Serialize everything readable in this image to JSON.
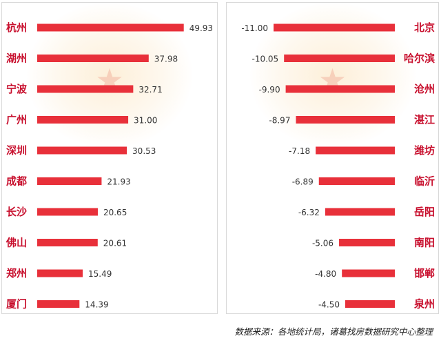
{
  "chart_data": [
    {
      "type": "bar",
      "orientation": "horizontal",
      "categories": [
        "杭州",
        "湖州",
        "宁波",
        "广州",
        "深圳",
        "成都",
        "长沙",
        "佛山",
        "郑州",
        "厦门"
      ],
      "values": [
        49.93,
        37.98,
        32.71,
        31.0,
        30.53,
        21.93,
        20.65,
        20.61,
        15.49,
        14.39
      ],
      "labels": [
        "49.93",
        "37.98",
        "32.71",
        "31.00",
        "30.53",
        "21.93",
        "20.65",
        "20.61",
        "15.49",
        "14.39"
      ],
      "xlim": [
        0,
        50
      ],
      "category_side": "left",
      "grid": false
    },
    {
      "type": "bar",
      "orientation": "horizontal",
      "categories": [
        "北京",
        "哈尔滨",
        "沧州",
        "湛江",
        "潍坊",
        "临沂",
        "岳阳",
        "南阳",
        "邯郸",
        "泉州"
      ],
      "values": [
        -11.0,
        -10.05,
        -9.9,
        -8.97,
        -7.18,
        -6.89,
        -6.32,
        -5.06,
        -4.8,
        -4.5
      ],
      "labels": [
        "-11.00",
        "-10.05",
        "-9.90",
        "-8.97",
        "-7.18",
        "-6.89",
        "-6.32",
        "-5.06",
        "-4.80",
        "-4.50"
      ],
      "xlim": [
        -11,
        0
      ],
      "category_side": "right",
      "grid": false
    }
  ],
  "colors": {
    "bar": "#e8303a",
    "category_text": "#c8102e"
  },
  "footer": {
    "source": "数据来源：各地统计局，诸葛找房数据研究中心整理"
  }
}
